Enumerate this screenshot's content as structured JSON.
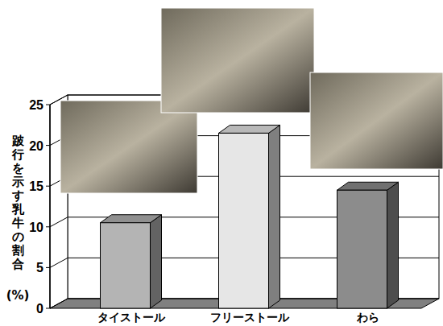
{
  "chart_data": {
    "type": "bar",
    "ylabel": "跛行を示す乳牛の割合(%)",
    "categories": [
      "タイストール",
      "フリーストール",
      "わら"
    ],
    "values": [
      10.5,
      21.5,
      14.5
    ],
    "colors": [
      "#b4b4b4",
      "#e6e6e6",
      "#8c8c8c"
    ],
    "ylim": [
      0,
      25
    ],
    "yticks": [
      0,
      5,
      10,
      15,
      20,
      25
    ],
    "grid": true
  }
}
